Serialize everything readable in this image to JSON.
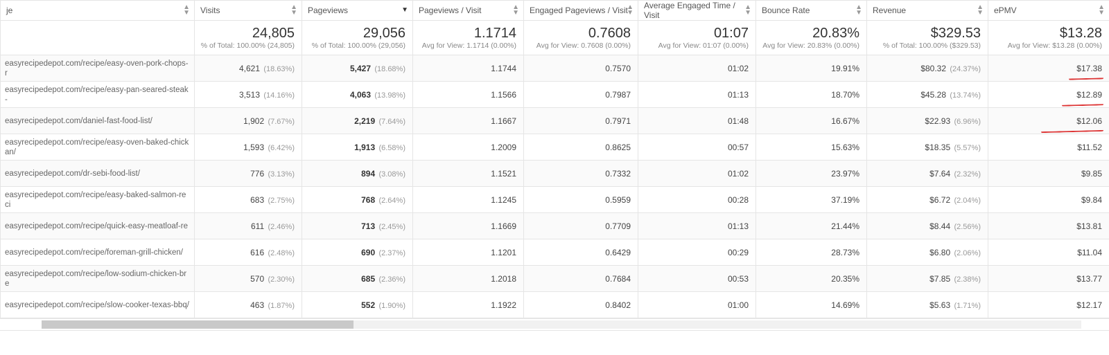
{
  "colors": {
    "border": "#e5e5e5",
    "text": "#444",
    "muted": "#999",
    "bold": "#333",
    "stripe": "#fafafa",
    "underline": "#d33"
  },
  "columns": [
    {
      "key": "page",
      "label": "je",
      "sort": "both"
    },
    {
      "key": "visits",
      "label": "Visits",
      "sort": "both"
    },
    {
      "key": "pv",
      "label": "Pageviews",
      "sort": "down"
    },
    {
      "key": "pvv",
      "label": "Pageviews / Visit",
      "sort": "both"
    },
    {
      "key": "epvv",
      "label": "Engaged Pageviews / Visit",
      "sort": "both"
    },
    {
      "key": "aet",
      "label": "Average Engaged Time / Visit",
      "sort": "both"
    },
    {
      "key": "bounce",
      "label": "Bounce Rate",
      "sort": "both"
    },
    {
      "key": "rev",
      "label": "Revenue",
      "sort": "both"
    },
    {
      "key": "epmv",
      "label": "ePMV",
      "sort": "both"
    }
  ],
  "summary": {
    "visits": {
      "big": "24,805",
      "sub": "% of Total: 100.00% (24,805)"
    },
    "pv": {
      "big": "29,056",
      "sub": "% of Total: 100.00% (29,056)"
    },
    "pvv": {
      "big": "1.1714",
      "sub": "Avg for View: 1.1714 (0.00%)"
    },
    "epvv": {
      "big": "0.7608",
      "sub": "Avg for View: 0.7608 (0.00%)"
    },
    "aet": {
      "big": "01:07",
      "sub": "Avg for View: 01:07 (0.00%)"
    },
    "bounce": {
      "big": "20.83%",
      "sub": "Avg for View: 20.83% (0.00%)"
    },
    "rev": {
      "big": "$329.53",
      "sub": "% of Total: 100.00% ($329.53)"
    },
    "epmv": {
      "big": "$13.28",
      "sub": "Avg for View: $13.28 (0.00%)"
    }
  },
  "rows": [
    {
      "page": "easyrecipedepot.com/recipe/easy-oven-pork-chops-r",
      "visits": {
        "val": "4,621",
        "pct": "(18.63%)"
      },
      "pv": {
        "val": "5,427",
        "pct": "(18.68%)",
        "bold": true
      },
      "pvv": {
        "val": "1.1744"
      },
      "epvv": {
        "val": "0.7570"
      },
      "aet": {
        "val": "01:02"
      },
      "bounce": {
        "val": "19.91%"
      },
      "rev": {
        "val": "$80.32",
        "pct": "(24.37%)"
      },
      "epmv": {
        "val": "$17.38",
        "underline": 50
      }
    },
    {
      "page": "easyrecipedepot.com/recipe/easy-pan-seared-steak-",
      "visits": {
        "val": "3,513",
        "pct": "(14.16%)"
      },
      "pv": {
        "val": "4,063",
        "pct": "(13.98%)",
        "bold": true
      },
      "pvv": {
        "val": "1.1566"
      },
      "epvv": {
        "val": "0.7987"
      },
      "aet": {
        "val": "01:13"
      },
      "bounce": {
        "val": "18.70%"
      },
      "rev": {
        "val": "$45.28",
        "pct": "(13.74%)"
      },
      "epmv": {
        "val": "$12.89",
        "underline": 60
      }
    },
    {
      "page": "easyrecipedepot.com/daniel-fast-food-list/",
      "visits": {
        "val": "1,902",
        "pct": "(7.67%)"
      },
      "pv": {
        "val": "2,219",
        "pct": "(7.64%)",
        "bold": true
      },
      "pvv": {
        "val": "1.1667"
      },
      "epvv": {
        "val": "0.7971"
      },
      "aet": {
        "val": "01:48"
      },
      "bounce": {
        "val": "16.67%"
      },
      "rev": {
        "val": "$22.93",
        "pct": "(6.96%)"
      },
      "epmv": {
        "val": "$12.06",
        "underline": 90
      }
    },
    {
      "page": "easyrecipedepot.com/recipe/easy-oven-baked-chick an/",
      "visits": {
        "val": "1,593",
        "pct": "(6.42%)"
      },
      "pv": {
        "val": "1,913",
        "pct": "(6.58%)",
        "bold": true
      },
      "pvv": {
        "val": "1.2009"
      },
      "epvv": {
        "val": "0.8625"
      },
      "aet": {
        "val": "00:57"
      },
      "bounce": {
        "val": "15.63%"
      },
      "rev": {
        "val": "$18.35",
        "pct": "(5.57%)"
      },
      "epmv": {
        "val": "$11.52"
      }
    },
    {
      "page": "easyrecipedepot.com/dr-sebi-food-list/",
      "visits": {
        "val": "776",
        "pct": "(3.13%)"
      },
      "pv": {
        "val": "894",
        "pct": "(3.08%)",
        "bold": true
      },
      "pvv": {
        "val": "1.1521"
      },
      "epvv": {
        "val": "0.7332"
      },
      "aet": {
        "val": "01:02"
      },
      "bounce": {
        "val": "23.97%"
      },
      "rev": {
        "val": "$7.64",
        "pct": "(2.32%)"
      },
      "epmv": {
        "val": "$9.85"
      }
    },
    {
      "page": "easyrecipedepot.com/recipe/easy-baked-salmon-reci",
      "visits": {
        "val": "683",
        "pct": "(2.75%)"
      },
      "pv": {
        "val": "768",
        "pct": "(2.64%)",
        "bold": true
      },
      "pvv": {
        "val": "1.1245"
      },
      "epvv": {
        "val": "0.5959"
      },
      "aet": {
        "val": "00:28"
      },
      "bounce": {
        "val": "37.19%"
      },
      "rev": {
        "val": "$6.72",
        "pct": "(2.04%)"
      },
      "epmv": {
        "val": "$9.84"
      }
    },
    {
      "page": "easyrecipedepot.com/recipe/quick-easy-meatloaf-re",
      "visits": {
        "val": "611",
        "pct": "(2.46%)"
      },
      "pv": {
        "val": "713",
        "pct": "(2.45%)",
        "bold": true
      },
      "pvv": {
        "val": "1.1669"
      },
      "epvv": {
        "val": "0.7709"
      },
      "aet": {
        "val": "01:13"
      },
      "bounce": {
        "val": "21.44%"
      },
      "rev": {
        "val": "$8.44",
        "pct": "(2.56%)"
      },
      "epmv": {
        "val": "$13.81"
      }
    },
    {
      "page": "easyrecipedepot.com/recipe/foreman-grill-chicken/",
      "visits": {
        "val": "616",
        "pct": "(2.48%)"
      },
      "pv": {
        "val": "690",
        "pct": "(2.37%)",
        "bold": true
      },
      "pvv": {
        "val": "1.1201"
      },
      "epvv": {
        "val": "0.6429"
      },
      "aet": {
        "val": "00:29"
      },
      "bounce": {
        "val": "28.73%"
      },
      "rev": {
        "val": "$6.80",
        "pct": "(2.06%)"
      },
      "epmv": {
        "val": "$11.04"
      }
    },
    {
      "page": "easyrecipedepot.com/recipe/low-sodium-chicken-bre",
      "visits": {
        "val": "570",
        "pct": "(2.30%)"
      },
      "pv": {
        "val": "685",
        "pct": "(2.36%)",
        "bold": true
      },
      "pvv": {
        "val": "1.2018"
      },
      "epvv": {
        "val": "0.7684"
      },
      "aet": {
        "val": "00:53"
      },
      "bounce": {
        "val": "20.35%"
      },
      "rev": {
        "val": "$7.85",
        "pct": "(2.38%)"
      },
      "epmv": {
        "val": "$13.77"
      }
    },
    {
      "page": "easyrecipedepot.com/recipe/slow-cooker-texas-bbq/",
      "visits": {
        "val": "463",
        "pct": "(1.87%)"
      },
      "pv": {
        "val": "552",
        "pct": "(1.90%)",
        "bold": true
      },
      "pvv": {
        "val": "1.1922"
      },
      "epvv": {
        "val": "0.8402"
      },
      "aet": {
        "val": "01:00"
      },
      "bounce": {
        "val": "14.69%"
      },
      "rev": {
        "val": "$5.63",
        "pct": "(1.71%)"
      },
      "epmv": {
        "val": "$12.17"
      }
    }
  ]
}
